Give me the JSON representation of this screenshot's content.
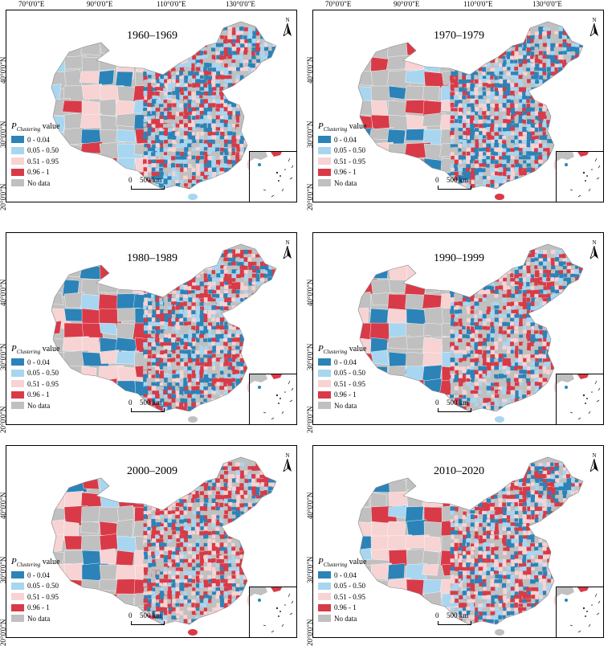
{
  "colors": {
    "c1": "#2b83b8",
    "c2": "#a8d6f0",
    "c3": "#f7d3d3",
    "c4": "#d93a48",
    "nodata": "#c0c0c0"
  },
  "axes": {
    "lon_labels": [
      "70°0'0\"E",
      "90°0'0\"E",
      "110°0'0\"E",
      "130°0'0\"E"
    ],
    "lat_labels": [
      "40°0'0\"N",
      "30°0'0\"N",
      "20°0'0\"N"
    ]
  },
  "legend": {
    "title_p": "P",
    "title_sub": "Clustering",
    "title_rest": " value",
    "items": [
      {
        "label": "0 - 0.04",
        "color": "#2b83b8"
      },
      {
        "label": "0.05 - 0.50",
        "color": "#a8d6f0"
      },
      {
        "label": "0.51 - 0.95",
        "color": "#f7d3d3"
      },
      {
        "label": "0.96 - 1",
        "color": "#d93a48"
      },
      {
        "label": "No data",
        "color": "#c0c0c0"
      }
    ]
  },
  "scale": {
    "zero": "0",
    "km": "500 km"
  },
  "north_label": "N",
  "panels": [
    {
      "title": "1960–1969",
      "mix": [
        0.18,
        0.2,
        0.17,
        0.2,
        0.25
      ]
    },
    {
      "title": "1970–1979",
      "mix": [
        0.2,
        0.17,
        0.2,
        0.2,
        0.23
      ]
    },
    {
      "title": "1980–1989",
      "mix": [
        0.16,
        0.14,
        0.2,
        0.24,
        0.26
      ]
    },
    {
      "title": "1990–1999",
      "mix": [
        0.15,
        0.12,
        0.18,
        0.22,
        0.33
      ]
    },
    {
      "title": "2000–2009",
      "mix": [
        0.12,
        0.1,
        0.22,
        0.24,
        0.32
      ]
    },
    {
      "title": "2010–2020",
      "mix": [
        0.14,
        0.12,
        0.26,
        0.22,
        0.26
      ]
    }
  ]
}
